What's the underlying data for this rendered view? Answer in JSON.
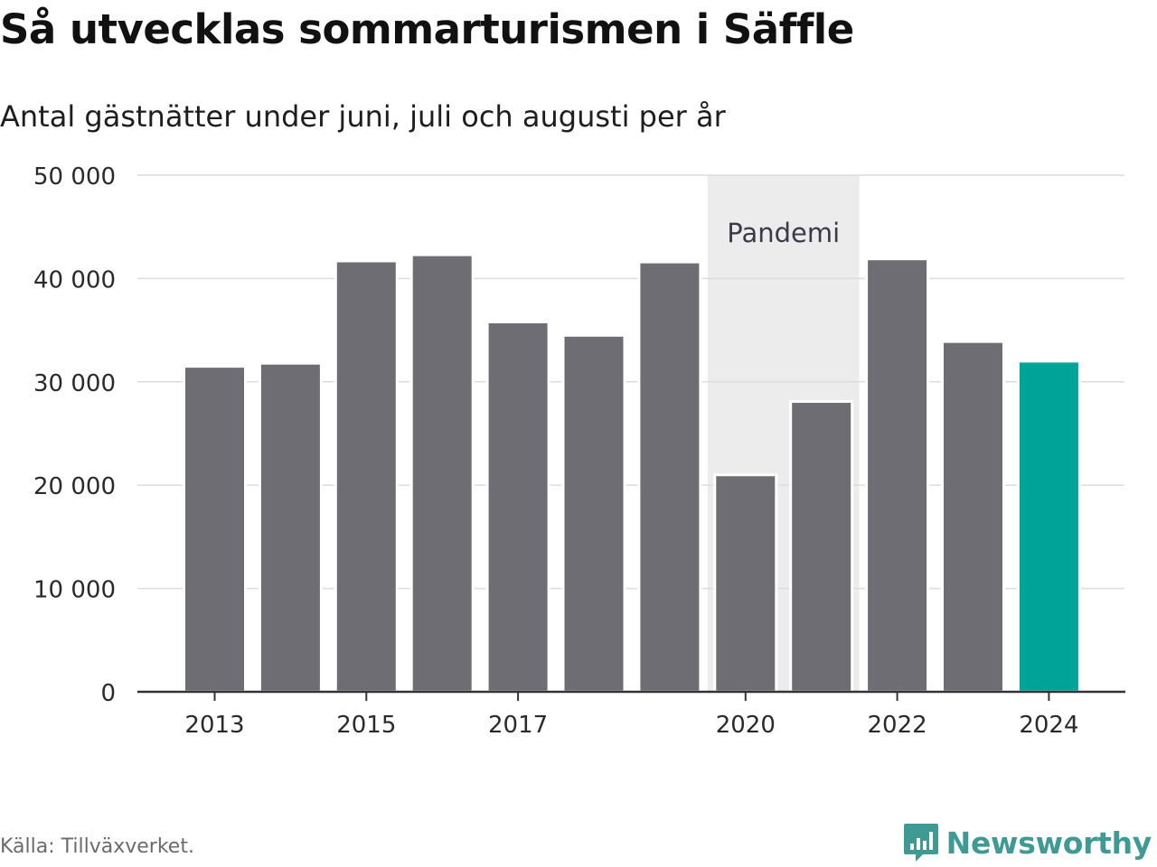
{
  "header": {
    "title": "Så utvecklas sommarturismen i Säffle",
    "subtitle": "Antal gästnätter under juni, juli och augusti per år"
  },
  "footer": {
    "source": "Källa: Tillväxverket.",
    "brand": "Newsworthy"
  },
  "colors": {
    "bar": "#6e6d73",
    "highlight": "#00a398",
    "band": "#ececec",
    "grid": "#dcdcdc",
    "axis": "#333333",
    "brand": "#3f9a93"
  },
  "chart_data": {
    "type": "bar",
    "title": "Så utvecklas sommarturismen i Säffle",
    "subtitle": "Antal gästnätter under juni, juli och augusti per år",
    "xlabel": "",
    "ylabel": "",
    "categories": [
      2013,
      2014,
      2015,
      2016,
      2017,
      2018,
      2019,
      2020,
      2021,
      2022,
      2023,
      2024
    ],
    "values": [
      31500,
      31800,
      41700,
      42300,
      35800,
      34500,
      41600,
      21000,
      28100,
      41900,
      33900,
      32000
    ],
    "highlight_category": 2024,
    "ylim": [
      0,
      50000
    ],
    "yticks": [
      0,
      10000,
      20000,
      30000,
      40000,
      50000
    ],
    "ytick_labels": [
      "0",
      "10 000",
      "20 000",
      "30 000",
      "40 000",
      "50 000"
    ],
    "xticks": [
      2013,
      2015,
      2017,
      2020,
      2022,
      2024
    ],
    "xtick_labels": [
      "2013",
      "2015",
      "2017",
      "2020",
      "2022",
      "2024"
    ],
    "grid": true,
    "annotations": [
      {
        "type": "band",
        "from": 2020,
        "to": 2021,
        "label": "Pandemi"
      }
    ]
  }
}
